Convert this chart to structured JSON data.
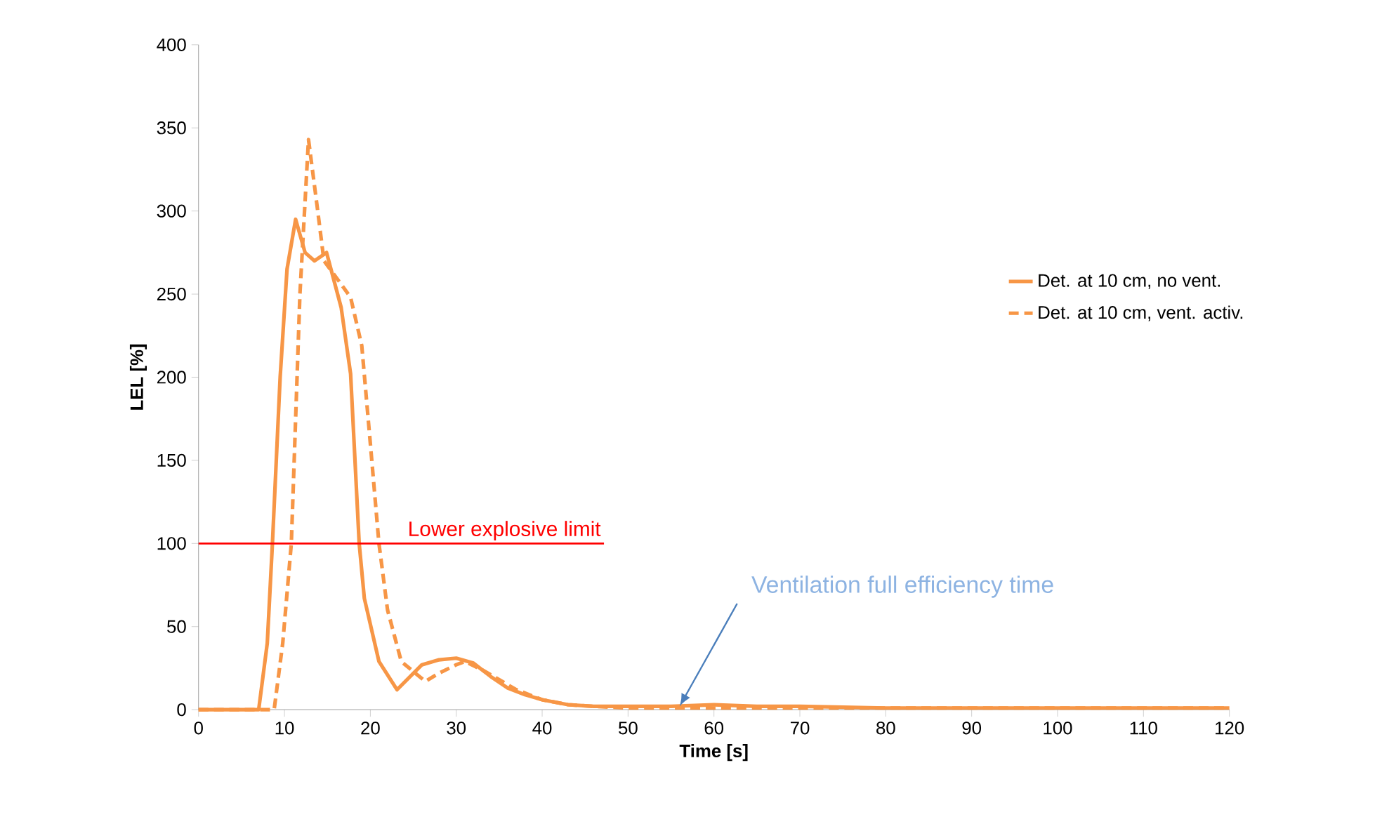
{
  "chart_data": {
    "type": "line",
    "xlabel": "Time [s]",
    "ylabel": "LEL [%]",
    "xlim": [
      0,
      120
    ],
    "xticks": [
      0,
      10,
      20,
      30,
      40,
      50,
      60,
      70,
      80,
      90,
      100,
      110,
      120
    ],
    "ylim": [
      0,
      400
    ],
    "yticks": [
      0,
      50,
      100,
      150,
      200,
      250,
      300,
      350,
      400
    ],
    "grid": false,
    "legend": "top right",
    "marker": "none",
    "series": [
      {
        "name": "Det. at 10 cm, no vent.",
        "color": "#f79646",
        "line_style": "solid",
        "x": [
          0,
          7,
          8,
          8.6,
          9.5,
          10.3,
          11.3,
          12.4,
          13.5,
          14.9,
          16.6,
          17.7,
          18.7,
          19.3,
          21,
          23.1,
          26,
          28,
          30,
          32,
          34,
          36,
          38,
          40,
          43,
          46,
          50,
          55,
          60,
          65,
          70,
          80,
          90,
          100,
          110,
          120
        ],
        "values": [
          0,
          0,
          40,
          100,
          200,
          265,
          295,
          275,
          270,
          275,
          242,
          202,
          100,
          67,
          29,
          12,
          27,
          30,
          31,
          28,
          20,
          13,
          9,
          6,
          3,
          2,
          2,
          2,
          3,
          2,
          2,
          1,
          1,
          1,
          1,
          1
        ]
      },
      {
        "name": "Det. at 10 cm, vent. activ.",
        "color": "#f79646",
        "line_style": "dashed",
        "x": [
          0,
          8.8,
          9.8,
          10.8,
          11.8,
          12.8,
          13.8,
          14.6,
          16.6,
          17.7,
          19,
          20,
          21,
          22,
          23.6,
          26.4,
          28,
          30,
          31,
          33,
          35,
          37,
          40,
          43,
          46,
          50,
          55,
          60,
          70,
          80,
          90,
          100,
          110,
          120
        ],
        "values": [
          0,
          0,
          40,
          100,
          250,
          343,
          303,
          270,
          256,
          248,
          219,
          160,
          100,
          60,
          29,
          17,
          22,
          27,
          29,
          24,
          18,
          12,
          6,
          3,
          2,
          1,
          1,
          1,
          1,
          1,
          1,
          1,
          1,
          1
        ]
      }
    ],
    "ref_lines": [
      {
        "axis": "y",
        "value": 100,
        "label": "Lower explosive limit",
        "color": "#ff0000"
      }
    ],
    "annotations": [
      {
        "text": "Ventilation full efficiency time",
        "x": 56,
        "y": 2
      }
    ]
  }
}
